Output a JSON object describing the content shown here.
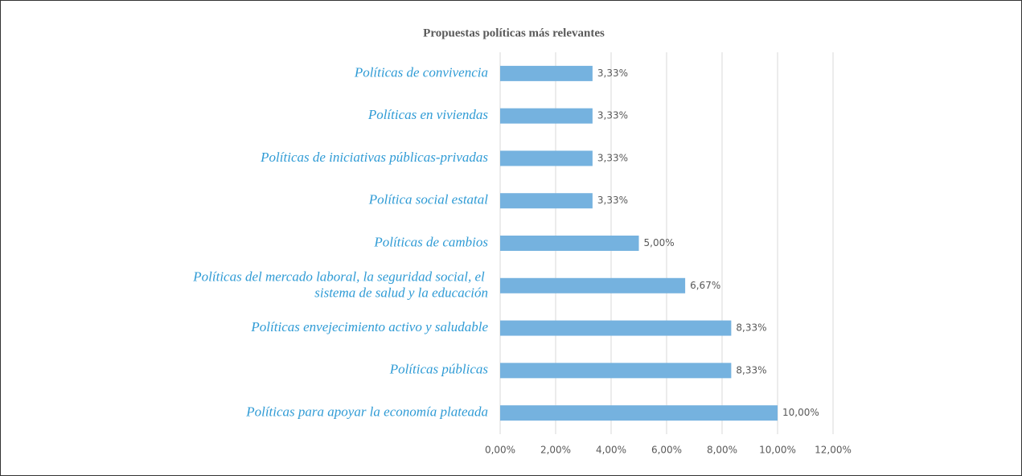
{
  "chart_data": {
    "type": "barh",
    "title": "Propuestas políticas más relevantes",
    "categories": [
      "Políticas de convivencia",
      "Políticas en viviendas",
      "Políticas de iniciativas públicas-privadas",
      "Política social estatal",
      "Políticas de cambios",
      "Políticas del mercado laboral, la seguridad social, el sistema de salud y la educación",
      "Políticas envejecimiento activo y saludable",
      "Políticas públicas",
      "Políticas para apoyar la economía plateada"
    ],
    "values": [
      3.33,
      3.33,
      3.33,
      3.33,
      5.0,
      6.67,
      8.33,
      8.33,
      10.0
    ],
    "value_labels": [
      "3,33%",
      "3,33%",
      "3,33%",
      "3,33%",
      "5,00%",
      "6,67%",
      "8,33%",
      "8,33%",
      "10,00%"
    ],
    "color": "#75b2df",
    "xlim": [
      0,
      12
    ],
    "xticks": [
      {
        "value": 0,
        "label": "0,00%"
      },
      {
        "value": 2,
        "label": "2,00%"
      },
      {
        "value": 4,
        "label": "4,00%"
      },
      {
        "value": 6,
        "label": "6,00%"
      },
      {
        "value": 8,
        "label": "8,00%"
      },
      {
        "value": 10,
        "label": "10,00%"
      },
      {
        "value": 12,
        "label": "12,00%"
      }
    ],
    "grid": true
  }
}
